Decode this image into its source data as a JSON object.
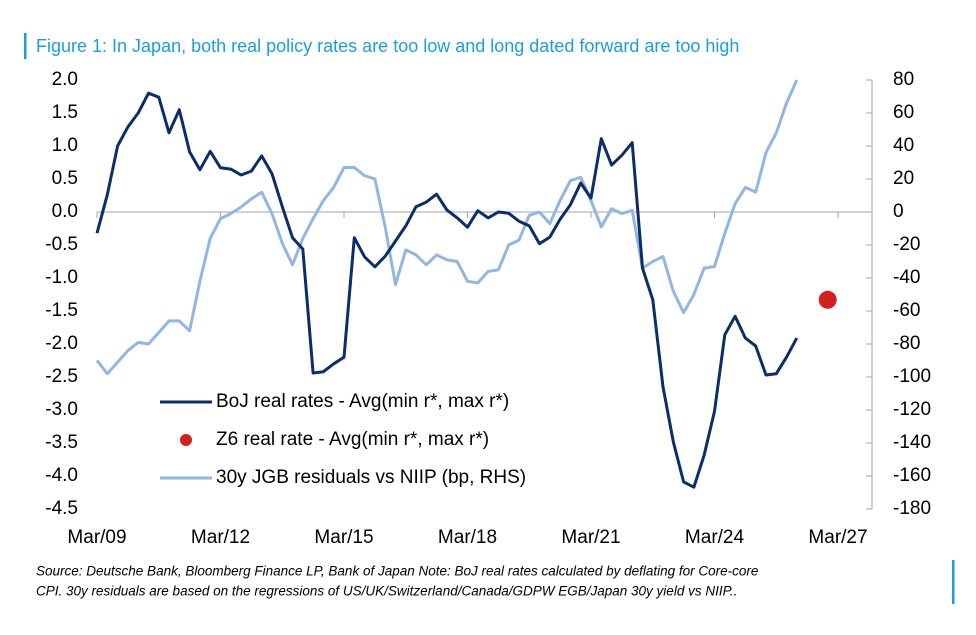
{
  "chart_data": {
    "type": "line",
    "title": "Figure 1: In Japan, both real policy rates are too low and long dated forward are too high",
    "source_lines": [
      "Source: Deutsche Bank, Bloomberg Finance LP, Bank of Japan  Note: BoJ real rates calculated by deflating for Core-core",
      "CPI. 30y residuals are based on the regressions of US/UK/Switzerland/Canada/GDPW EGB/Japan 30y yield vs NIIP.."
    ],
    "x": [
      "Mar/09",
      "Jun/09",
      "Sep/09",
      "Dec/09",
      "Mar/10",
      "Jun/10",
      "Sep/10",
      "Dec/10",
      "Mar/11",
      "Jun/11",
      "Sep/11",
      "Dec/11",
      "Mar/12",
      "Jun/12",
      "Sep/12",
      "Dec/12",
      "Mar/13",
      "Jun/13",
      "Sep/13",
      "Dec/13",
      "Mar/14",
      "Jun/14",
      "Sep/14",
      "Dec/14",
      "Mar/15",
      "Jun/15",
      "Sep/15",
      "Dec/15",
      "Mar/16",
      "Jun/16",
      "Sep/16",
      "Dec/16",
      "Mar/17",
      "Jun/17",
      "Sep/17",
      "Dec/17",
      "Mar/18",
      "Jun/18",
      "Sep/18",
      "Dec/18",
      "Mar/19",
      "Jun/19",
      "Sep/19",
      "Dec/19",
      "Mar/20",
      "Jun/20",
      "Sep/20",
      "Dec/20",
      "Mar/21",
      "Jun/21",
      "Sep/21",
      "Dec/21",
      "Mar/22",
      "Jun/22",
      "Sep/22",
      "Dec/22",
      "Mar/23",
      "Jun/23",
      "Sep/23",
      "Dec/23",
      "Mar/24",
      "Jun/24",
      "Sep/24",
      "Dec/24",
      "Mar/25",
      "Jun/25",
      "Sep/25",
      "Dec/25",
      "Mar/26"
    ],
    "series": [
      {
        "name": "BoJ real rates - Avg(min r*, max r*)",
        "color": "#0c2d6b",
        "values": [
          -0.32,
          0.26,
          1.0,
          1.29,
          1.5,
          1.8,
          1.74,
          1.2,
          1.55,
          0.91,
          0.64,
          0.92,
          0.67,
          0.65,
          0.56,
          0.62,
          0.85,
          0.58,
          0.08,
          -0.39,
          -0.56,
          -2.44,
          -2.42,
          -2.3,
          -2.2,
          -0.39,
          -0.68,
          -0.83,
          -0.67,
          -0.44,
          -0.21,
          0.08,
          0.15,
          0.27,
          0.03,
          -0.09,
          -0.23,
          0.02,
          -0.09,
          0,
          -0.02,
          -0.14,
          -0.21,
          -0.48,
          -0.38,
          -0.11,
          0.11,
          0.44,
          0.21,
          1.11,
          0.71,
          0.86,
          1.05,
          -0.85,
          -1.33,
          -2.65,
          -3.48,
          -4.09,
          -4.17,
          -3.68,
          -3.02,
          -1.86,
          -1.58,
          -1.91,
          -2.03,
          -2.47,
          -2.45,
          -2.2,
          -1.91
        ]
      },
      {
        "name": "Z6 real rate  - Avg(min r*, max r*)",
        "color": "#d42020",
        "x": [
          "Dec/26"
        ],
        "values": [
          -1.33
        ]
      },
      {
        "name": "30y JGB residuals vs NIIP (bp, RHS)",
        "color": "#92b6e4",
        "axis": "y2",
        "values": [
          -90,
          -98,
          -91,
          -84,
          -79,
          -80,
          -73,
          -66,
          -66,
          -72,
          -42,
          -16,
          -4,
          -1,
          3,
          8,
          12,
          -1,
          -19,
          -32,
          -16,
          -4,
          7,
          15,
          27,
          27,
          22,
          20,
          -9,
          -44,
          -23,
          -26,
          -32,
          -26,
          -29,
          -30,
          -42,
          -43,
          -36,
          -35,
          -20,
          -17,
          -2,
          0,
          -7,
          7,
          19,
          21,
          7,
          -9,
          2,
          -1,
          1,
          -34,
          -30,
          -27,
          -48,
          -61,
          -50,
          -34,
          -33,
          -13,
          5,
          15,
          12,
          36,
          48,
          66,
          80
        ]
      }
    ],
    "xlim": [
      "Mar/09",
      "Mar/27"
    ],
    "xticks": [
      "Mar/09",
      "Mar/12",
      "Mar/15",
      "Mar/18",
      "Mar/21",
      "Mar/24",
      "Mar/27"
    ],
    "ylim": [
      -4.5,
      2
    ],
    "yticks": [
      {
        "value": 2,
        "label": "2.0"
      },
      1.5,
      {
        "value": 1,
        "label": "1.0"
      },
      0.5,
      {
        "value": 0,
        "label": "0.0"
      },
      -0.5,
      {
        "value": -1,
        "label": "-1.0"
      },
      -1.5,
      {
        "value": -2,
        "label": "-2.0"
      },
      -2.5,
      {
        "value": -3,
        "label": "-3.0"
      },
      -3.5,
      {
        "value": -4,
        "label": "-4.0"
      },
      -4.5
    ],
    "y2lim": [
      -180,
      80
    ],
    "y2ticks": [
      80,
      60,
      40,
      20,
      0,
      -20,
      -40,
      -60,
      -80,
      -100,
      -120,
      -140,
      -160,
      -180
    ]
  }
}
